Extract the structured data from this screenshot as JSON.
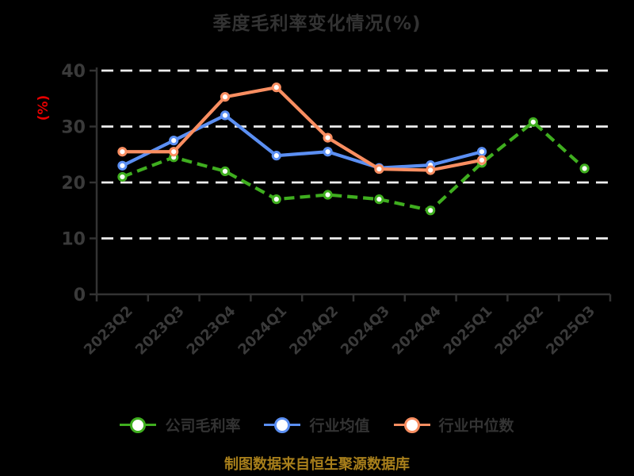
{
  "caption": "制图数据来自恒生聚源数据库",
  "colors": {
    "background": "#000000",
    "title": "#333333",
    "axis": "#333333",
    "tick_label": "#3a3a3a",
    "legend_label": "#333333",
    "grid": "#ededed",
    "ylabel": "#e60000",
    "caption": "#a87f1b",
    "marker_fill": "#ffffff"
  },
  "chart_data": {
    "type": "line",
    "title": "季度毛利率变化情况(%)",
    "ylabel": "(%)",
    "xlabel": "",
    "ylim": [
      0,
      40
    ],
    "yticks": [
      0,
      10,
      20,
      30,
      40
    ],
    "grid": "horizontal white dashed lines",
    "legend_position": "bottom",
    "x_tick_rotation": -45,
    "categories": [
      "2023Q2",
      "2023Q3",
      "2023Q4",
      "2024Q1",
      "2024Q2",
      "2024Q3",
      "2024Q4",
      "2025Q1",
      "2025Q2",
      "2025Q3"
    ],
    "series": [
      {
        "id": "company-gross-margin",
        "name": "公司毛利率",
        "color": "#3fae1f",
        "style": "dashed",
        "values": [
          21,
          24.5,
          22,
          17,
          17.8,
          17,
          15,
          23.5,
          30.8,
          22.5
        ]
      },
      {
        "id": "industry-average",
        "name": "行业均值",
        "color": "#5b8ff3",
        "style": "solid",
        "values": [
          23,
          27.5,
          32,
          24.8,
          25.5,
          22.6,
          23.1,
          25.5,
          null,
          null
        ]
      },
      {
        "id": "industry-median",
        "name": "行业中位数",
        "color": "#f98e61",
        "style": "solid",
        "values": [
          25.5,
          25.5,
          35.3,
          37,
          28,
          22.4,
          22.2,
          24,
          null,
          null
        ]
      }
    ]
  }
}
